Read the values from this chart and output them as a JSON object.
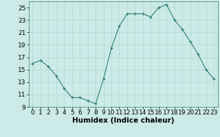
{
  "x": [
    0,
    1,
    2,
    3,
    4,
    5,
    6,
    7,
    8,
    9,
    10,
    11,
    12,
    13,
    14,
    15,
    16,
    17,
    18,
    19,
    20,
    21,
    22,
    23
  ],
  "y": [
    16,
    16.5,
    15.5,
    14,
    12,
    10.5,
    10.5,
    10,
    9.5,
    13.5,
    18.5,
    22,
    24,
    24,
    24,
    23.5,
    25,
    25.5,
    23,
    21.5,
    19.5,
    17.5,
    15,
    13.5
  ],
  "xlabel": "Humidex (Indice chaleur)",
  "ylim": [
    9,
    26
  ],
  "xlim": [
    -0.5,
    23.5
  ],
  "yticks": [
    9,
    11,
    13,
    15,
    17,
    19,
    21,
    23,
    25
  ],
  "xticks": [
    0,
    1,
    2,
    3,
    4,
    5,
    6,
    7,
    8,
    9,
    10,
    11,
    12,
    13,
    14,
    15,
    16,
    17,
    18,
    19,
    20,
    21,
    22,
    23
  ],
  "line_color": "#2e7d6e",
  "marker_color": "#2e7d6e",
  "bg_color": "#cceae7",
  "grid_color": "#b0d8d4",
  "axis_label_fontsize": 7.5,
  "tick_fontsize": 6.5
}
